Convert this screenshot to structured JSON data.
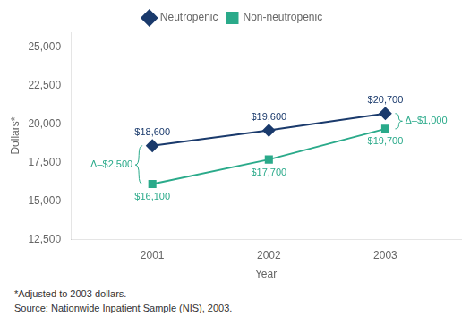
{
  "chart_data": {
    "type": "line",
    "x": [
      2001,
      2002,
      2003
    ],
    "series": [
      {
        "name": "Neutropenic",
        "color": "#1a3a6c",
        "marker": "diamond",
        "values": [
          18600,
          19600,
          20700
        ],
        "value_labels": [
          "$18,600",
          "$19,600",
          "$20,700"
        ]
      },
      {
        "name": "Non-neutropenic",
        "color": "#2aaa8a",
        "marker": "square",
        "values": [
          16100,
          17700,
          19700
        ],
        "value_labels": [
          "$16,100",
          "$17,700",
          "$19,700"
        ]
      }
    ],
    "data_labels": true,
    "xlabel": "Year",
    "ylabel": "Dollars*",
    "xlim": [
      2000.3,
      2003.65
    ],
    "xticks": [
      2001,
      2002,
      2003
    ],
    "ylim": [
      12500,
      26000
    ],
    "yticks": [
      {
        "value": 12500,
        "label": "12,500"
      },
      {
        "value": 15000,
        "label": "15,000"
      },
      {
        "value": 17500,
        "label": "17,500"
      },
      {
        "value": 20000,
        "label": "20,000"
      },
      {
        "value": 22500,
        "label": "22,500"
      },
      {
        "value": 25000,
        "label": "25,000"
      }
    ],
    "grid": false,
    "legend": "top",
    "annotations": [
      {
        "text": "Δ–$2,500",
        "x": 2001,
        "color": "#2aaa8a"
      },
      {
        "text": "Δ–$1,000",
        "x": 2003,
        "color": "#2aaa8a"
      }
    ],
    "footnotes": [
      "*Adjusted to 2003 dollars.",
      "Source: Nationwide Inpatient Sample (NIS), 2003."
    ]
  }
}
